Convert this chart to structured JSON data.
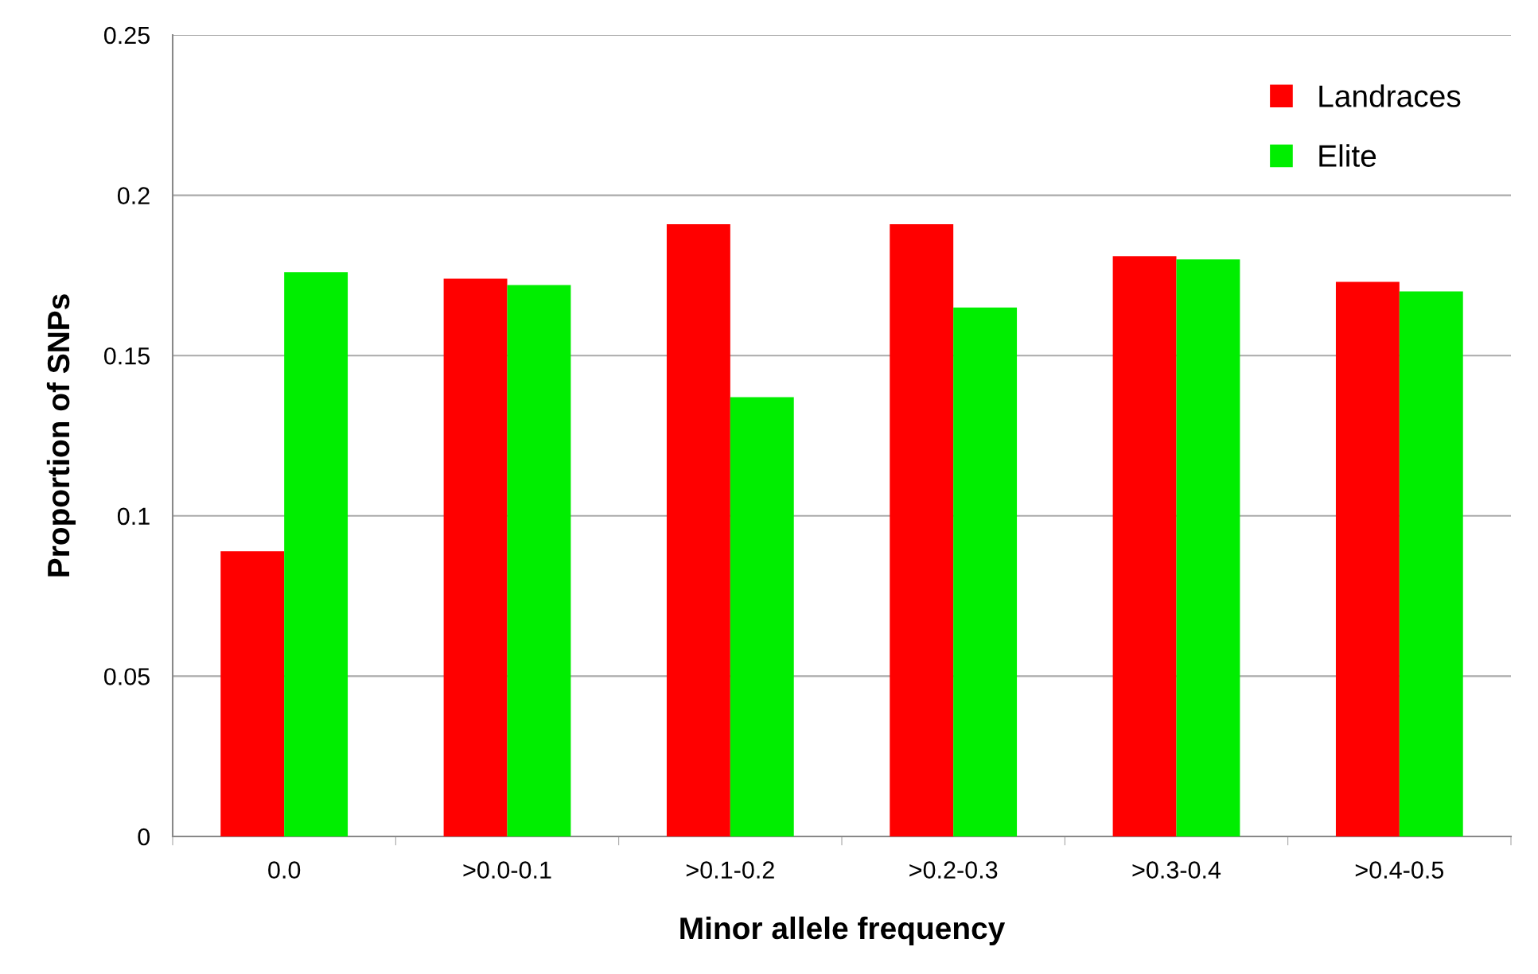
{
  "chart_data": {
    "type": "bar",
    "xlabel": "Minor allele frequency",
    "ylabel": "Proportion of SNPs",
    "categories": [
      "0.0",
      ">0.0-0.1",
      ">0.1-0.2",
      ">0.2-0.3",
      ">0.3-0.4",
      ">0.4-0.5"
    ],
    "series": [
      {
        "name": "Landraces",
        "color": "#ff0000",
        "values": [
          0.089,
          0.174,
          0.191,
          0.191,
          0.181,
          0.173
        ]
      },
      {
        "name": "Elite",
        "color": "#00ee00",
        "values": [
          0.176,
          0.172,
          0.137,
          0.165,
          0.18,
          0.17
        ]
      }
    ],
    "ylim": [
      0,
      0.25
    ],
    "yticks": [
      0,
      0.05,
      0.1,
      0.15,
      0.2,
      0.25
    ],
    "grid": "y",
    "legend": "top right"
  }
}
